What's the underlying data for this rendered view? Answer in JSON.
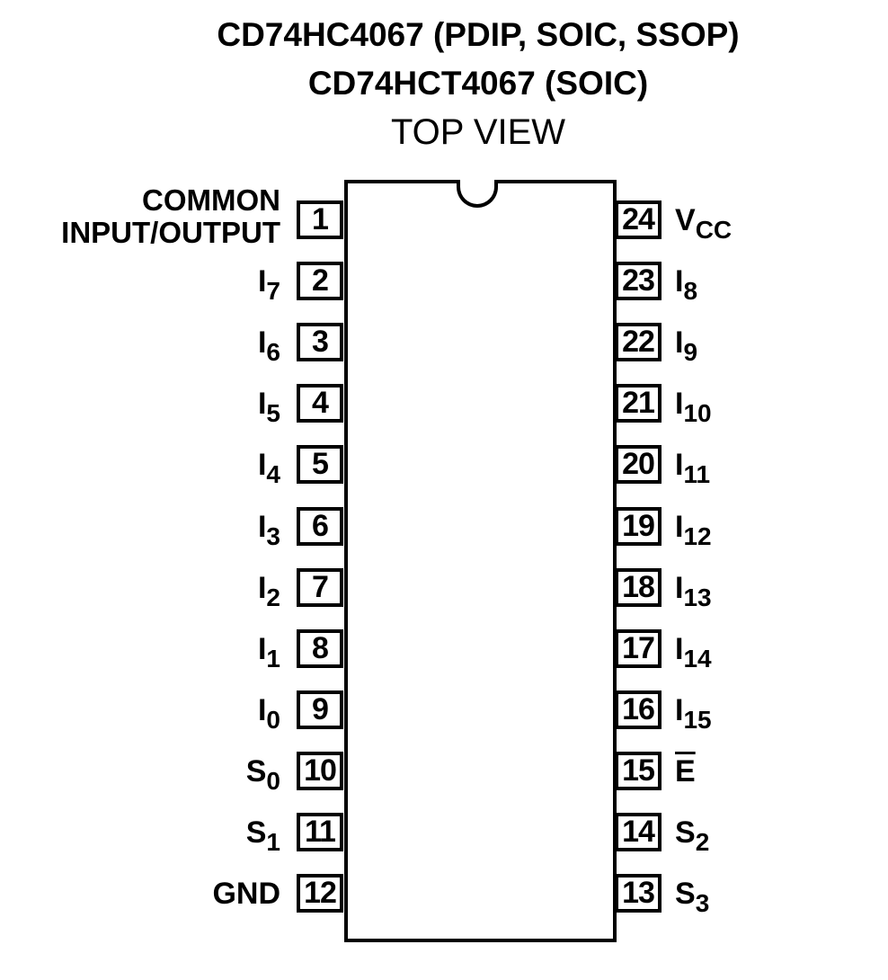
{
  "titles": {
    "line1": "CD74HC4067 (PDIP, SOIC, SSOP)",
    "line2": "CD74HCT4067 (SOIC)",
    "line3": "TOP VIEW"
  },
  "left_pins": [
    {
      "num": "1",
      "label_lines": [
        "COMMON",
        "INPUT/OUTPUT"
      ]
    },
    {
      "num": "2",
      "base": "I",
      "sub": "7"
    },
    {
      "num": "3",
      "base": "I",
      "sub": "6"
    },
    {
      "num": "4",
      "base": "I",
      "sub": "5"
    },
    {
      "num": "5",
      "base": "I",
      "sub": "4"
    },
    {
      "num": "6",
      "base": "I",
      "sub": "3"
    },
    {
      "num": "7",
      "base": "I",
      "sub": "2"
    },
    {
      "num": "8",
      "base": "I",
      "sub": "1"
    },
    {
      "num": "9",
      "base": "I",
      "sub": "0"
    },
    {
      "num": "10",
      "base": "S",
      "sub": "0"
    },
    {
      "num": "11",
      "base": "S",
      "sub": "1"
    },
    {
      "num": "12",
      "base": "GND",
      "sub": ""
    }
  ],
  "right_pins": [
    {
      "num": "24",
      "base": "V",
      "sub": "CC"
    },
    {
      "num": "23",
      "base": "I",
      "sub": "8"
    },
    {
      "num": "22",
      "base": "I",
      "sub": "9"
    },
    {
      "num": "21",
      "base": "I",
      "sub": "10"
    },
    {
      "num": "20",
      "base": "I",
      "sub": "11"
    },
    {
      "num": "19",
      "base": "I",
      "sub": "12"
    },
    {
      "num": "18",
      "base": "I",
      "sub": "13"
    },
    {
      "num": "17",
      "base": "I",
      "sub": "14"
    },
    {
      "num": "16",
      "base": "I",
      "sub": "15"
    },
    {
      "num": "15",
      "base": "E",
      "sub": "",
      "overline": true
    },
    {
      "num": "14",
      "base": "S",
      "sub": "2"
    },
    {
      "num": "13",
      "base": "S",
      "sub": "3"
    }
  ]
}
